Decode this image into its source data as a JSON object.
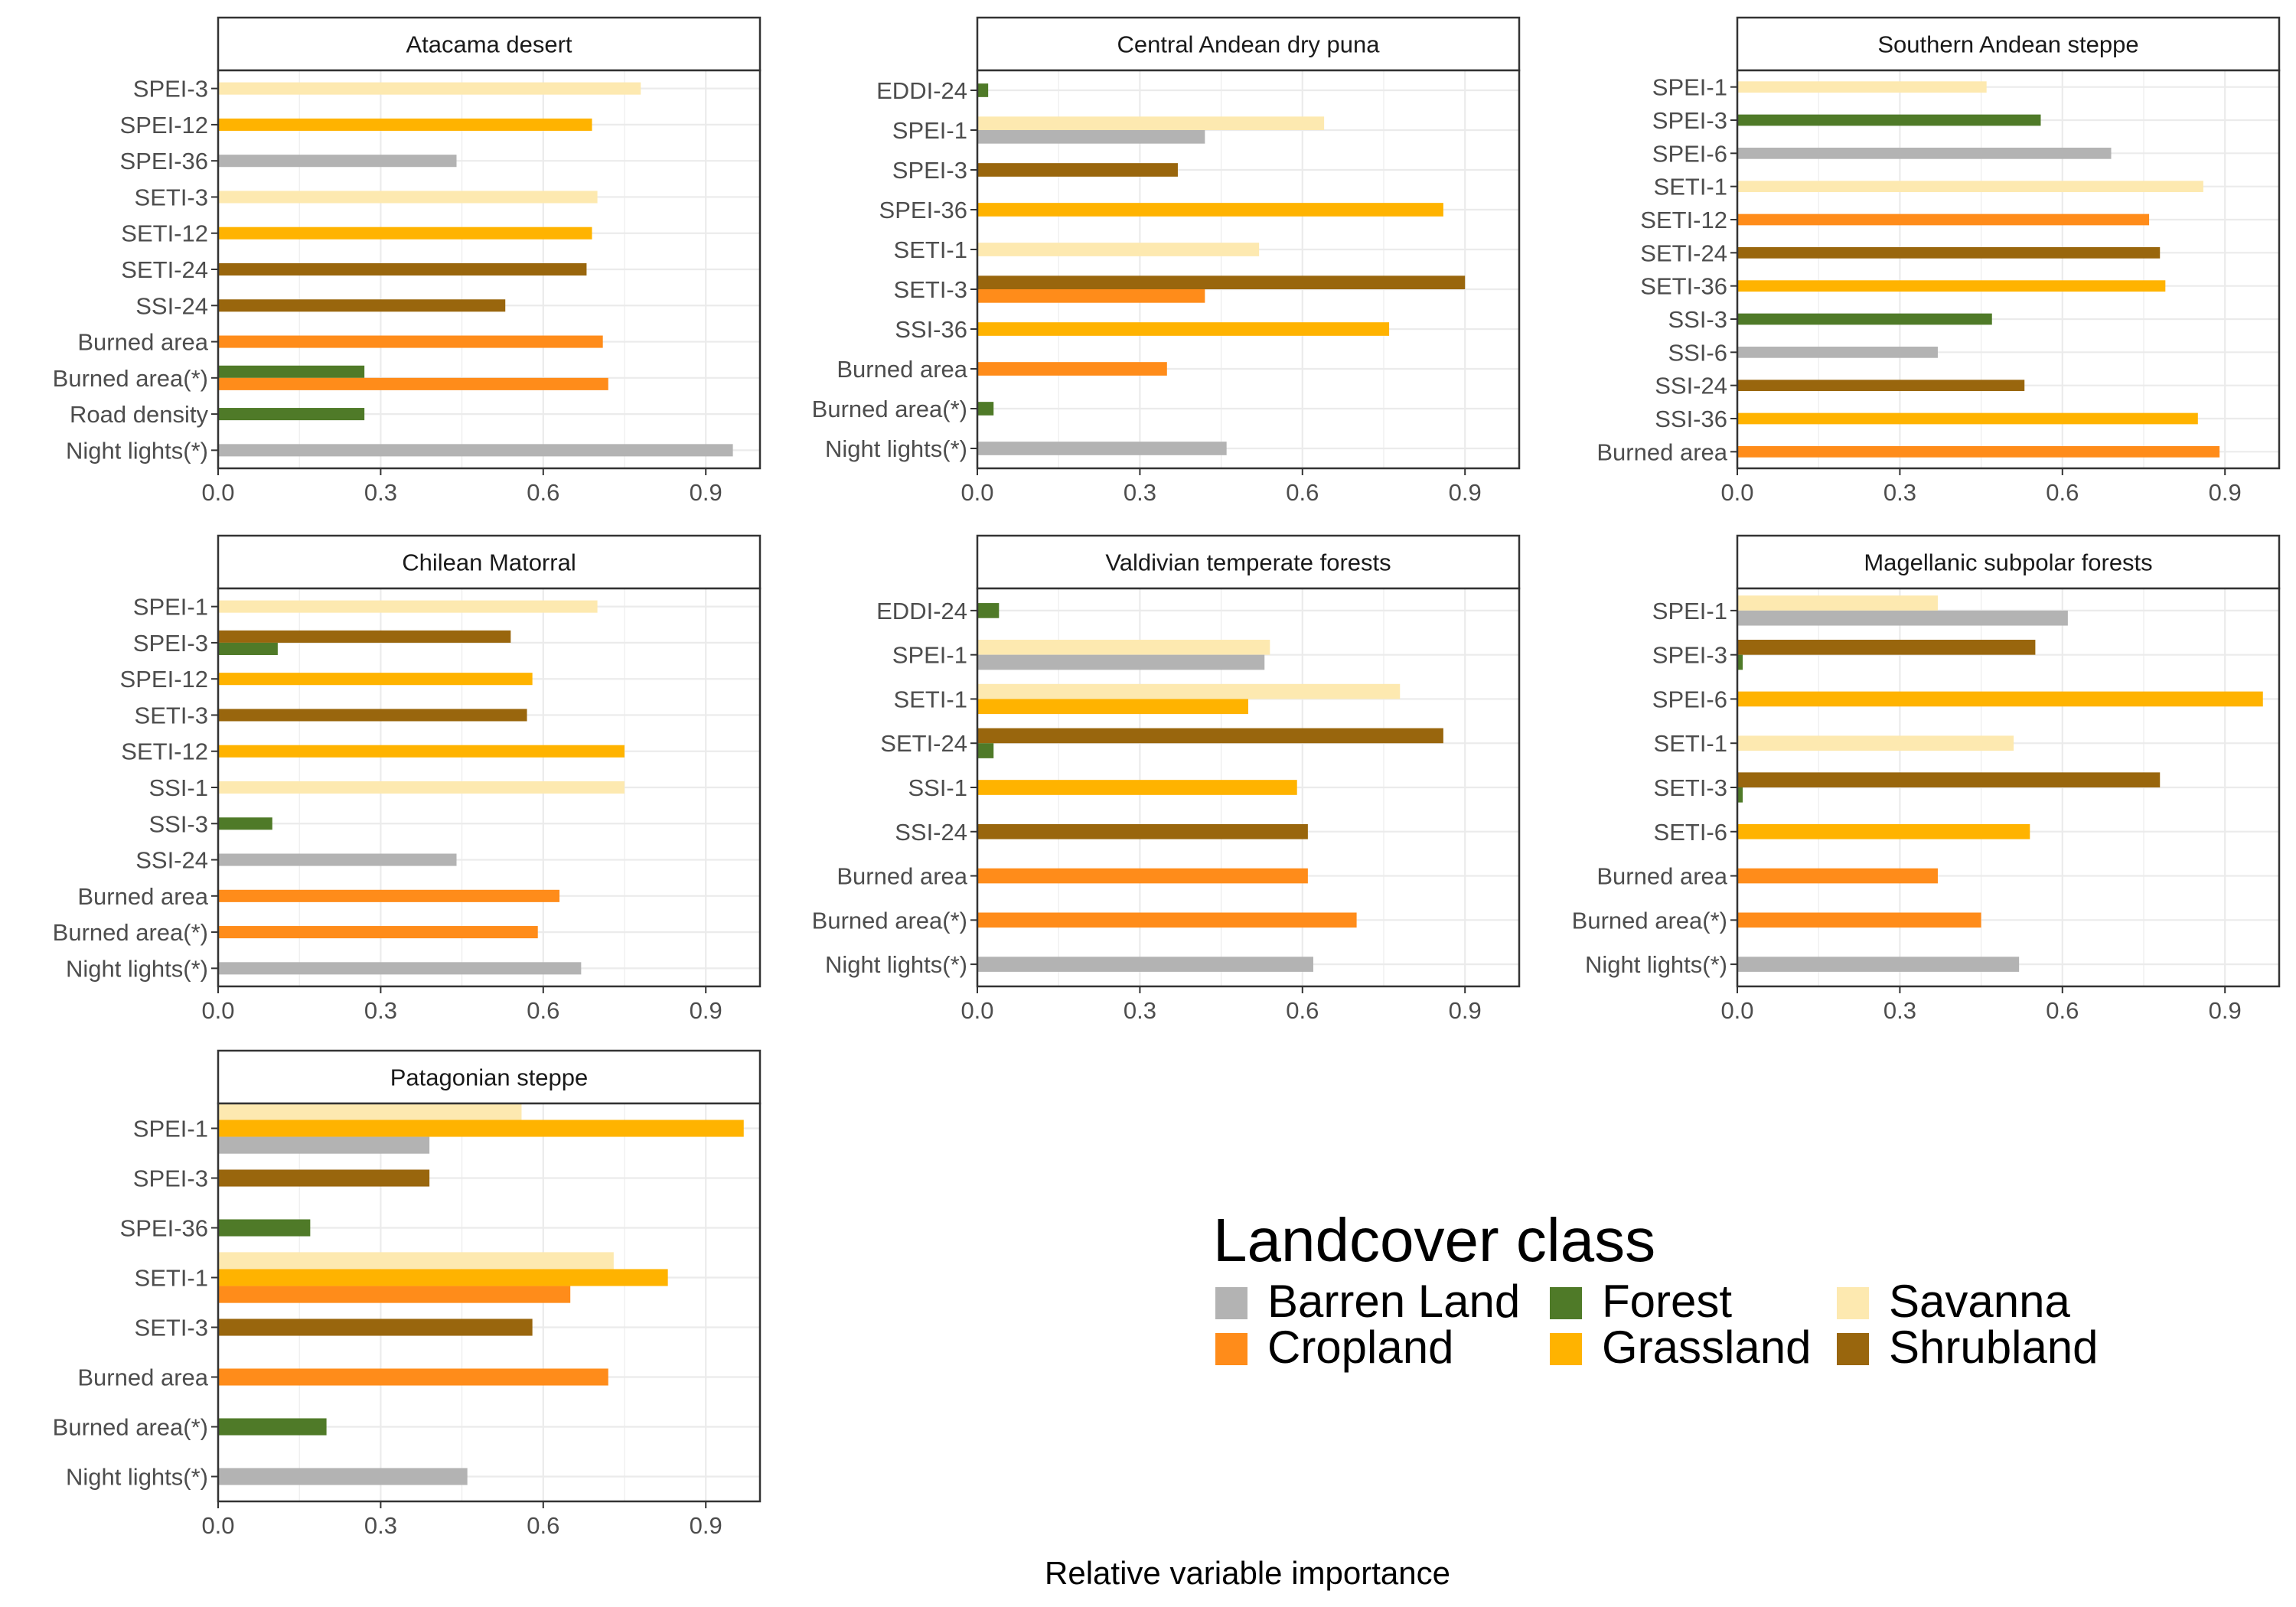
{
  "chart_data": {
    "type": "bar",
    "orientation": "horizontal",
    "xlabel": "Relative variable importance",
    "xlim": [
      0,
      1
    ],
    "xticks": [
      "0.0",
      "0.3",
      "0.6",
      "0.9"
    ],
    "grid": true,
    "legend": {
      "title": "Landcover class",
      "placement": "bottom-right",
      "entries": [
        {
          "name": "Barren Land",
          "color": "#b3b3b3"
        },
        {
          "name": "Cropland",
          "color": "#ff8c1a"
        },
        {
          "name": "Forest",
          "color": "#4f7a28"
        },
        {
          "name": "Grassland",
          "color": "#ffb300"
        },
        {
          "name": "Savanna",
          "color": "#fde9b0"
        },
        {
          "name": "Shrubland",
          "color": "#99660d"
        }
      ]
    },
    "panels": [
      {
        "title": "Atacama desert",
        "categories": [
          "SPEI-3",
          "SPEI-12",
          "SPEI-36",
          "SETI-3",
          "SETI-12",
          "SETI-24",
          "SSI-24",
          "Burned area",
          "Burned area(*)",
          "Road density",
          "Night lights(*)"
        ],
        "bars": [
          {
            "category": "SPEI-3",
            "values": [
              {
                "class": "Savanna",
                "value": 0.78
              }
            ]
          },
          {
            "category": "SPEI-12",
            "values": [
              {
                "class": "Grassland",
                "value": 0.69
              }
            ]
          },
          {
            "category": "SPEI-36",
            "values": [
              {
                "class": "Barren Land",
                "value": 0.44
              }
            ]
          },
          {
            "category": "SETI-3",
            "values": [
              {
                "class": "Savanna",
                "value": 0.7
              }
            ]
          },
          {
            "category": "SETI-12",
            "values": [
              {
                "class": "Grassland",
                "value": 0.69
              }
            ]
          },
          {
            "category": "SETI-24",
            "values": [
              {
                "class": "Shrubland",
                "value": 0.68
              }
            ]
          },
          {
            "category": "SSI-24",
            "values": [
              {
                "class": "Shrubland",
                "value": 0.53
              }
            ]
          },
          {
            "category": "Burned area",
            "values": [
              {
                "class": "Cropland",
                "value": 0.71
              }
            ]
          },
          {
            "category": "Burned area(*)",
            "values": [
              {
                "class": "Forest",
                "value": 0.27
              },
              {
                "class": "Cropland",
                "value": 0.72
              }
            ]
          },
          {
            "category": "Road density",
            "values": [
              {
                "class": "Forest",
                "value": 0.27
              }
            ]
          },
          {
            "category": "Night lights(*)",
            "values": [
              {
                "class": "Barren Land",
                "value": 0.95
              }
            ]
          }
        ]
      },
      {
        "title": "Central Andean dry puna",
        "categories": [
          "EDDI-24",
          "SPEI-1",
          "SPEI-3",
          "SPEI-36",
          "SETI-1",
          "SETI-3",
          "SSI-36",
          "Burned area",
          "Burned area(*)",
          "Night lights(*)"
        ],
        "bars": [
          {
            "category": "EDDI-24",
            "values": [
              {
                "class": "Forest",
                "value": 0.02
              }
            ]
          },
          {
            "category": "SPEI-1",
            "values": [
              {
                "class": "Savanna",
                "value": 0.64
              },
              {
                "class": "Barren Land",
                "value": 0.42
              }
            ]
          },
          {
            "category": "SPEI-3",
            "values": [
              {
                "class": "Shrubland",
                "value": 0.37
              }
            ]
          },
          {
            "category": "SPEI-36",
            "values": [
              {
                "class": "Grassland",
                "value": 0.86
              }
            ]
          },
          {
            "category": "SETI-1",
            "values": [
              {
                "class": "Savanna",
                "value": 0.52
              }
            ]
          },
          {
            "category": "SETI-3",
            "values": [
              {
                "class": "Shrubland",
                "value": 0.9
              },
              {
                "class": "Cropland",
                "value": 0.42
              }
            ]
          },
          {
            "category": "SSI-36",
            "values": [
              {
                "class": "Grassland",
                "value": 0.76
              }
            ]
          },
          {
            "category": "Burned area",
            "values": [
              {
                "class": "Cropland",
                "value": 0.35
              }
            ]
          },
          {
            "category": "Burned area(*)",
            "values": [
              {
                "class": "Forest",
                "value": 0.03
              }
            ]
          },
          {
            "category": "Night lights(*)",
            "values": [
              {
                "class": "Barren Land",
                "value": 0.46
              }
            ]
          }
        ]
      },
      {
        "title": "Southern Andean steppe",
        "categories": [
          "SPEI-1",
          "SPEI-3",
          "SPEI-6",
          "SETI-1",
          "SETI-12",
          "SETI-24",
          "SETI-36",
          "SSI-3",
          "SSI-6",
          "SSI-24",
          "SSI-36",
          "Burned area"
        ],
        "bars": [
          {
            "category": "SPEI-1",
            "values": [
              {
                "class": "Savanna",
                "value": 0.46
              }
            ]
          },
          {
            "category": "SPEI-3",
            "values": [
              {
                "class": "Forest",
                "value": 0.56
              }
            ]
          },
          {
            "category": "SPEI-6",
            "values": [
              {
                "class": "Barren Land",
                "value": 0.69
              }
            ]
          },
          {
            "category": "SETI-1",
            "values": [
              {
                "class": "Savanna",
                "value": 0.86
              }
            ]
          },
          {
            "category": "SETI-12",
            "values": [
              {
                "class": "Cropland",
                "value": 0.76
              }
            ]
          },
          {
            "category": "SETI-24",
            "values": [
              {
                "class": "Shrubland",
                "value": 0.78
              }
            ]
          },
          {
            "category": "SETI-36",
            "values": [
              {
                "class": "Grassland",
                "value": 0.79
              }
            ]
          },
          {
            "category": "SSI-3",
            "values": [
              {
                "class": "Forest",
                "value": 0.47
              }
            ]
          },
          {
            "category": "SSI-6",
            "values": [
              {
                "class": "Barren Land",
                "value": 0.37
              }
            ]
          },
          {
            "category": "SSI-24",
            "values": [
              {
                "class": "Shrubland",
                "value": 0.53
              }
            ]
          },
          {
            "category": "SSI-36",
            "values": [
              {
                "class": "Grassland",
                "value": 0.85
              }
            ]
          },
          {
            "category": "Burned area",
            "values": [
              {
                "class": "Cropland",
                "value": 0.89
              }
            ]
          }
        ]
      },
      {
        "title": "Chilean Matorral",
        "categories": [
          "SPEI-1",
          "SPEI-3",
          "SPEI-12",
          "SETI-3",
          "SETI-12",
          "SSI-1",
          "SSI-3",
          "SSI-24",
          "Burned area",
          "Burned area(*)",
          "Night lights(*)"
        ],
        "bars": [
          {
            "category": "SPEI-1",
            "values": [
              {
                "class": "Savanna",
                "value": 0.7
              }
            ]
          },
          {
            "category": "SPEI-3",
            "values": [
              {
                "class": "Shrubland",
                "value": 0.54
              },
              {
                "class": "Forest",
                "value": 0.11
              }
            ]
          },
          {
            "category": "SPEI-12",
            "values": [
              {
                "class": "Grassland",
                "value": 0.58
              }
            ]
          },
          {
            "category": "SETI-3",
            "values": [
              {
                "class": "Shrubland",
                "value": 0.57
              }
            ]
          },
          {
            "category": "SETI-12",
            "values": [
              {
                "class": "Grassland",
                "value": 0.75
              }
            ]
          },
          {
            "category": "SSI-1",
            "values": [
              {
                "class": "Savanna",
                "value": 0.75
              }
            ]
          },
          {
            "category": "SSI-3",
            "values": [
              {
                "class": "Forest",
                "value": 0.1
              }
            ]
          },
          {
            "category": "SSI-24",
            "values": [
              {
                "class": "Barren Land",
                "value": 0.44
              }
            ]
          },
          {
            "category": "Burned area",
            "values": [
              {
                "class": "Cropland",
                "value": 0.63
              }
            ]
          },
          {
            "category": "Burned area(*)",
            "values": [
              {
                "class": "Cropland",
                "value": 0.59
              }
            ]
          },
          {
            "category": "Night lights(*)",
            "values": [
              {
                "class": "Barren Land",
                "value": 0.67
              }
            ]
          }
        ]
      },
      {
        "title": "Valdivian temperate forests",
        "categories": [
          "EDDI-24",
          "SPEI-1",
          "SETI-1",
          "SETI-24",
          "SSI-1",
          "SSI-24",
          "Burned area",
          "Burned area(*)",
          "Night lights(*)"
        ],
        "bars": [
          {
            "category": "EDDI-24",
            "values": [
              {
                "class": "Forest",
                "value": 0.04
              }
            ]
          },
          {
            "category": "SPEI-1",
            "values": [
              {
                "class": "Savanna",
                "value": 0.54
              },
              {
                "class": "Barren Land",
                "value": 0.53
              }
            ]
          },
          {
            "category": "SETI-1",
            "values": [
              {
                "class": "Savanna",
                "value": 0.78
              },
              {
                "class": "Grassland",
                "value": 0.5
              }
            ]
          },
          {
            "category": "SETI-24",
            "values": [
              {
                "class": "Shrubland",
                "value": 0.86
              },
              {
                "class": "Forest",
                "value": 0.03
              }
            ]
          },
          {
            "category": "SSI-1",
            "values": [
              {
                "class": "Grassland",
                "value": 0.59
              }
            ]
          },
          {
            "category": "SSI-24",
            "values": [
              {
                "class": "Shrubland",
                "value": 0.61
              }
            ]
          },
          {
            "category": "Burned area",
            "values": [
              {
                "class": "Cropland",
                "value": 0.61
              }
            ]
          },
          {
            "category": "Burned area(*)",
            "values": [
              {
                "class": "Cropland",
                "value": 0.7
              }
            ]
          },
          {
            "category": "Night lights(*)",
            "values": [
              {
                "class": "Barren Land",
                "value": 0.62
              }
            ]
          }
        ]
      },
      {
        "title": "Magellanic subpolar forests",
        "categories": [
          "SPEI-1",
          "SPEI-3",
          "SPEI-6",
          "SETI-1",
          "SETI-3",
          "SETI-6",
          "Burned area",
          "Burned area(*)",
          "Night lights(*)"
        ],
        "bars": [
          {
            "category": "SPEI-1",
            "values": [
              {
                "class": "Savanna",
                "value": 0.37
              },
              {
                "class": "Barren Land",
                "value": 0.61
              }
            ]
          },
          {
            "category": "SPEI-3",
            "values": [
              {
                "class": "Shrubland",
                "value": 0.55
              },
              {
                "class": "Forest",
                "value": 0.01
              }
            ]
          },
          {
            "category": "SPEI-6",
            "values": [
              {
                "class": "Grassland",
                "value": 0.97
              }
            ]
          },
          {
            "category": "SETI-1",
            "values": [
              {
                "class": "Savanna",
                "value": 0.51
              }
            ]
          },
          {
            "category": "SETI-3",
            "values": [
              {
                "class": "Shrubland",
                "value": 0.78
              },
              {
                "class": "Forest",
                "value": 0.01
              }
            ]
          },
          {
            "category": "SETI-6",
            "values": [
              {
                "class": "Grassland",
                "value": 0.54
              }
            ]
          },
          {
            "category": "Burned area",
            "values": [
              {
                "class": "Cropland",
                "value": 0.37
              }
            ]
          },
          {
            "category": "Burned area(*)",
            "values": [
              {
                "class": "Cropland",
                "value": 0.45
              }
            ]
          },
          {
            "category": "Night lights(*)",
            "values": [
              {
                "class": "Barren Land",
                "value": 0.52
              }
            ]
          }
        ]
      },
      {
        "title": "Patagonian steppe",
        "categories": [
          "SPEI-1",
          "SPEI-3",
          "SPEI-36",
          "SETI-1",
          "SETI-3",
          "Burned area",
          "Burned area(*)",
          "Night lights(*)"
        ],
        "bars": [
          {
            "category": "SPEI-1",
            "values": [
              {
                "class": "Savanna",
                "value": 0.56
              },
              {
                "class": "Grassland",
                "value": 0.97
              },
              {
                "class": "Barren Land",
                "value": 0.39
              }
            ]
          },
          {
            "category": "SPEI-3",
            "values": [
              {
                "class": "Shrubland",
                "value": 0.39
              }
            ]
          },
          {
            "category": "SPEI-36",
            "values": [
              {
                "class": "Forest",
                "value": 0.17
              }
            ]
          },
          {
            "category": "SETI-1",
            "values": [
              {
                "class": "Savanna",
                "value": 0.73
              },
              {
                "class": "Grassland",
                "value": 0.83
              },
              {
                "class": "Cropland",
                "value": 0.65
              }
            ]
          },
          {
            "category": "SETI-3",
            "values": [
              {
                "class": "Shrubland",
                "value": 0.58
              }
            ]
          },
          {
            "category": "Burned area",
            "values": [
              {
                "class": "Cropland",
                "value": 0.72
              }
            ]
          },
          {
            "category": "Burned area(*)",
            "values": [
              {
                "class": "Forest",
                "value": 0.2
              }
            ]
          },
          {
            "category": "Night lights(*)",
            "values": [
              {
                "class": "Barren Land",
                "value": 0.46
              }
            ]
          }
        ]
      }
    ]
  }
}
